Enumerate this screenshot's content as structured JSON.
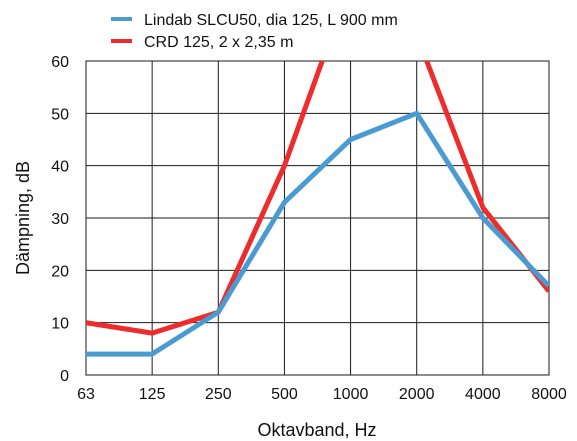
{
  "chart_data": {
    "type": "line",
    "title": "",
    "xlabel": "Oktavband, Hz",
    "ylabel": "Dämpning, dB",
    "categories": [
      "63",
      "125",
      "250",
      "500",
      "1000",
      "2000",
      "4000",
      "8000"
    ],
    "ylim": [
      0,
      60
    ],
    "yticks": [
      0,
      10,
      20,
      30,
      40,
      50,
      60
    ],
    "grid": true,
    "legend_position": "top",
    "series": [
      {
        "name": "Lindab SLCU50, dia 125, L 900 mm",
        "color": "#4a9bd1",
        "values": [
          4,
          4,
          12,
          33,
          45,
          50,
          30,
          17
        ]
      },
      {
        "name": "CRD 125, 2 x 2,35 m",
        "color": "#ef2b2b",
        "values": [
          10,
          8,
          12,
          40,
          75,
          65,
          32,
          16
        ]
      }
    ]
  }
}
